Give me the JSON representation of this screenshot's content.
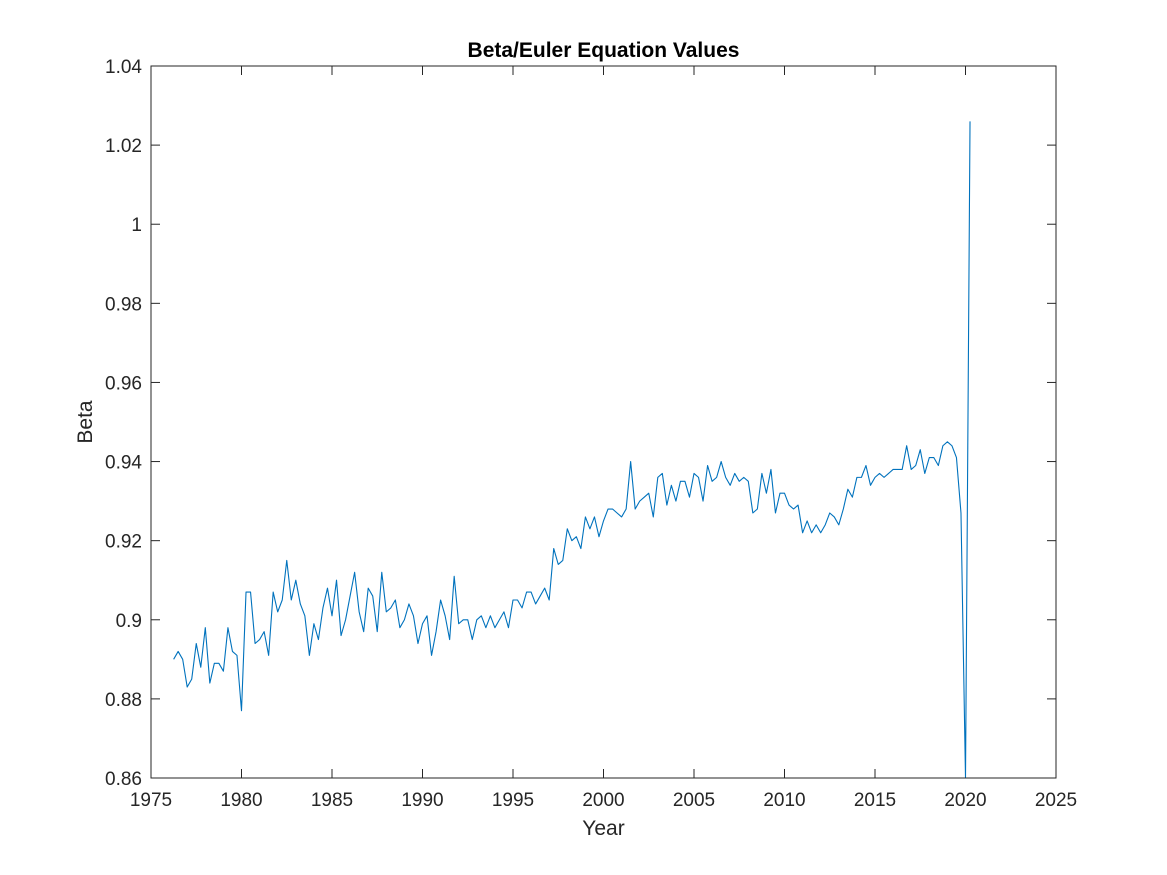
{
  "chart_data": {
    "type": "line",
    "title": "Beta/Euler Equation Values",
    "xlabel": "Year",
    "ylabel": "Beta",
    "xlim": [
      1975,
      2025
    ],
    "ylim": [
      0.86,
      1.04
    ],
    "xticks": [
      "1975",
      "1980",
      "1985",
      "1990",
      "1995",
      "2000",
      "2005",
      "2010",
      "2015",
      "2020",
      "2025"
    ],
    "yticks": [
      "0.86",
      "0.88",
      "0.9",
      "0.92",
      "0.94",
      "0.96",
      "0.98",
      "1",
      "1.02",
      "1.04"
    ],
    "grid": false,
    "legend": "none",
    "colors": {
      "line": "#0072BD",
      "axes": "#262626",
      "background": "#ffffff"
    },
    "series": [
      {
        "x": [
          1976.25,
          1976.5,
          1976.75,
          1977.0,
          1977.25,
          1977.5,
          1977.75,
          1978.0,
          1978.25,
          1978.5,
          1978.75,
          1979.0,
          1979.25,
          1979.5,
          1979.75,
          1980.0,
          1980.25,
          1980.5,
          1980.75,
          1981.0,
          1981.25,
          1981.5,
          1981.75,
          1982.0,
          1982.25,
          1982.5,
          1982.75,
          1983.0,
          1983.25,
          1983.5,
          1983.75,
          1984.0,
          1984.25,
          1984.5,
          1984.75,
          1985.0,
          1985.25,
          1985.5,
          1985.75,
          1986.0,
          1986.25,
          1986.5,
          1986.75,
          1987.0,
          1987.25,
          1987.5,
          1987.75,
          1988.0,
          1988.25,
          1988.5,
          1988.75,
          1989.0,
          1989.25,
          1989.5,
          1989.75,
          1990.0,
          1990.25,
          1990.5,
          1990.75,
          1991.0,
          1991.25,
          1991.5,
          1991.75,
          1992.0,
          1992.25,
          1992.5,
          1992.75,
          1993.0,
          1993.25,
          1993.5,
          1993.75,
          1994.0,
          1994.25,
          1994.5,
          1994.75,
          1995.0,
          1995.25,
          1995.5,
          1995.75,
          1996.0,
          1996.25,
          1996.5,
          1996.75,
          1997.0,
          1997.25,
          1997.5,
          1997.75,
          1998.0,
          1998.25,
          1998.5,
          1998.75,
          1999.0,
          1999.25,
          1999.5,
          1999.75,
          2000.0,
          2000.25,
          2000.5,
          2000.75,
          2001.0,
          2001.25,
          2001.5,
          2001.75,
          2002.0,
          2002.25,
          2002.5,
          2002.75,
          2003.0,
          2003.25,
          2003.5,
          2003.75,
          2004.0,
          2004.25,
          2004.5,
          2004.75,
          2005.0,
          2005.25,
          2005.5,
          2005.75,
          2006.0,
          2006.25,
          2006.5,
          2006.75,
          2007.0,
          2007.25,
          2007.5,
          2007.75,
          2008.0,
          2008.25,
          2008.5,
          2008.75,
          2009.0,
          2009.25,
          2009.5,
          2009.75,
          2010.0,
          2010.25,
          2010.5,
          2010.75,
          2011.0,
          2011.25,
          2011.5,
          2011.75,
          2012.0,
          2012.25,
          2012.5,
          2012.75,
          2013.0,
          2013.25,
          2013.5,
          2013.75,
          2014.0,
          2014.25,
          2014.5,
          2014.75,
          2015.0,
          2015.25,
          2015.5,
          2015.75,
          2016.0,
          2016.25,
          2016.5,
          2016.75,
          2017.0,
          2017.25,
          2017.5,
          2017.75,
          2018.0,
          2018.25,
          2018.5,
          2018.75,
          2019.0,
          2019.25,
          2019.5,
          2019.75,
          2020.0,
          2020.25
        ],
        "values": [
          0.89,
          0.892,
          0.89,
          0.883,
          0.885,
          0.894,
          0.888,
          0.898,
          0.884,
          0.889,
          0.889,
          0.887,
          0.898,
          0.892,
          0.891,
          0.877,
          0.907,
          0.907,
          0.894,
          0.895,
          0.897,
          0.891,
          0.907,
          0.902,
          0.905,
          0.915,
          0.905,
          0.91,
          0.904,
          0.901,
          0.891,
          0.899,
          0.895,
          0.903,
          0.908,
          0.901,
          0.91,
          0.896,
          0.9,
          0.906,
          0.912,
          0.902,
          0.897,
          0.908,
          0.906,
          0.897,
          0.912,
          0.902,
          0.903,
          0.905,
          0.898,
          0.9,
          0.904,
          0.901,
          0.894,
          0.899,
          0.901,
          0.891,
          0.897,
          0.905,
          0.901,
          0.895,
          0.911,
          0.899,
          0.9,
          0.9,
          0.895,
          0.9,
          0.901,
          0.898,
          0.901,
          0.898,
          0.9,
          0.902,
          0.898,
          0.905,
          0.905,
          0.903,
          0.907,
          0.907,
          0.904,
          0.906,
          0.908,
          0.905,
          0.918,
          0.914,
          0.915,
          0.923,
          0.92,
          0.921,
          0.918,
          0.926,
          0.923,
          0.926,
          0.921,
          0.925,
          0.928,
          0.928,
          0.927,
          0.926,
          0.928,
          0.94,
          0.928,
          0.93,
          0.931,
          0.932,
          0.926,
          0.936,
          0.937,
          0.929,
          0.934,
          0.93,
          0.935,
          0.935,
          0.931,
          0.937,
          0.936,
          0.93,
          0.939,
          0.935,
          0.936,
          0.94,
          0.936,
          0.934,
          0.937,
          0.935,
          0.936,
          0.935,
          0.927,
          0.928,
          0.937,
          0.932,
          0.938,
          0.927,
          0.932,
          0.932,
          0.929,
          0.928,
          0.929,
          0.922,
          0.925,
          0.922,
          0.924,
          0.922,
          0.924,
          0.927,
          0.926,
          0.924,
          0.928,
          0.933,
          0.931,
          0.936,
          0.936,
          0.939,
          0.934,
          0.936,
          0.937,
          0.936,
          0.937,
          0.938,
          0.938,
          0.938,
          0.944,
          0.938,
          0.939,
          0.943,
          0.937,
          0.941,
          0.941,
          0.939,
          0.944,
          0.945,
          0.944,
          0.941,
          0.927,
          0.86,
          1.026
        ]
      }
    ]
  }
}
